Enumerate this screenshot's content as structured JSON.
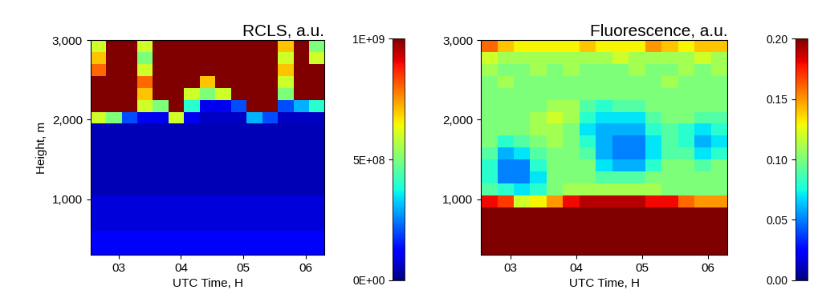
{
  "chart_data": [
    {
      "type": "heatmap",
      "title": "RCLS, a.u.",
      "x_label": "UTC Time, H",
      "y_label": "Height, m",
      "x_edges": [
        2.55,
        2.8,
        3.05,
        3.3,
        3.55,
        3.8,
        4.05,
        4.3,
        4.55,
        4.8,
        5.05,
        5.3,
        5.55,
        5.8,
        6.05,
        6.3
      ],
      "y_edges": [
        300,
        450,
        600,
        750,
        900,
        1050,
        1200,
        1350,
        1500,
        1650,
        1800,
        1950,
        2100,
        2250,
        2400,
        2550,
        2700,
        2850,
        3000
      ],
      "cells": [
        [
          120000000.0,
          120000000.0,
          120000000.0,
          120000000.0,
          120000000.0,
          120000000.0,
          120000000.0,
          120000000.0,
          120000000.0,
          120000000.0,
          120000000.0,
          120000000.0,
          120000000.0,
          120000000.0,
          120000000.0
        ],
        [
          120000000.0,
          120000000.0,
          120000000.0,
          120000000.0,
          120000000.0,
          120000000.0,
          120000000.0,
          120000000.0,
          120000000.0,
          120000000.0,
          120000000.0,
          120000000.0,
          120000000.0,
          120000000.0,
          120000000.0
        ],
        [
          80000000.0,
          80000000.0,
          80000000.0,
          80000000.0,
          80000000.0,
          80000000.0,
          80000000.0,
          80000000.0,
          80000000.0,
          80000000.0,
          80000000.0,
          80000000.0,
          80000000.0,
          80000000.0,
          80000000.0
        ],
        [
          80000000.0,
          80000000.0,
          80000000.0,
          80000000.0,
          80000000.0,
          80000000.0,
          80000000.0,
          80000000.0,
          80000000.0,
          80000000.0,
          80000000.0,
          80000000.0,
          80000000.0,
          80000000.0,
          80000000.0
        ],
        [
          80000000.0,
          80000000.0,
          80000000.0,
          80000000.0,
          80000000.0,
          80000000.0,
          80000000.0,
          80000000.0,
          80000000.0,
          80000000.0,
          80000000.0,
          80000000.0,
          80000000.0,
          80000000.0,
          80000000.0
        ],
        [
          50000000.0,
          50000000.0,
          50000000.0,
          50000000.0,
          50000000.0,
          50000000.0,
          50000000.0,
          50000000.0,
          50000000.0,
          50000000.0,
          50000000.0,
          50000000.0,
          50000000.0,
          50000000.0,
          50000000.0
        ],
        [
          50000000.0,
          50000000.0,
          50000000.0,
          50000000.0,
          50000000.0,
          50000000.0,
          50000000.0,
          50000000.0,
          50000000.0,
          50000000.0,
          50000000.0,
          50000000.0,
          50000000.0,
          50000000.0,
          50000000.0
        ],
        [
          50000000.0,
          50000000.0,
          50000000.0,
          50000000.0,
          50000000.0,
          50000000.0,
          50000000.0,
          50000000.0,
          50000000.0,
          50000000.0,
          50000000.0,
          50000000.0,
          50000000.0,
          50000000.0,
          50000000.0
        ],
        [
          50000000.0,
          50000000.0,
          50000000.0,
          50000000.0,
          50000000.0,
          50000000.0,
          50000000.0,
          50000000.0,
          50000000.0,
          50000000.0,
          50000000.0,
          50000000.0,
          50000000.0,
          50000000.0,
          50000000.0
        ],
        [
          50000000.0,
          50000000.0,
          50000000.0,
          50000000.0,
          50000000.0,
          50000000.0,
          50000000.0,
          50000000.0,
          50000000.0,
          50000000.0,
          50000000.0,
          50000000.0,
          50000000.0,
          50000000.0,
          50000000.0
        ],
        [
          50000000.0,
          50000000.0,
          50000000.0,
          50000000.0,
          50000000.0,
          50000000.0,
          50000000.0,
          50000000.0,
          50000000.0,
          50000000.0,
          50000000.0,
          50000000.0,
          50000000.0,
          50000000.0,
          50000000.0
        ],
        [
          600000000.0,
          500000000.0,
          200000000.0,
          100000000.0,
          100000000.0,
          600000000.0,
          100000000.0,
          60000000.0,
          60000000.0,
          60000000.0,
          300000000.0,
          200000000.0,
          60000000.0,
          60000000.0,
          60000000.0
        ],
        [
          1000000000.0,
          1000000000.0,
          1000000000.0,
          600000000.0,
          500000000.0,
          1000000000.0,
          400000000.0,
          100000000.0,
          100000000.0,
          200000000.0,
          1000000000.0,
          1000000000.0,
          200000000.0,
          300000000.0,
          400000000.0
        ],
        [
          1000000000.0,
          1000000000.0,
          1000000000.0,
          700000000.0,
          1000000000.0,
          1000000000.0,
          600000000.0,
          500000000.0,
          600000000.0,
          1000000000.0,
          1000000000.0,
          1000000000.0,
          500000000.0,
          1000000000.0,
          1000000000.0
        ],
        [
          1000000000.0,
          1000000000.0,
          1000000000.0,
          800000000.0,
          1000000000.0,
          1000000000.0,
          1000000000.0,
          700000000.0,
          1000000000.0,
          1000000000.0,
          1000000000.0,
          1000000000.0,
          600000000.0,
          1000000000.0,
          1000000000.0
        ],
        [
          800000000.0,
          1000000000.0,
          1000000000.0,
          600000000.0,
          1000000000.0,
          1000000000.0,
          1000000000.0,
          1000000000.0,
          1000000000.0,
          1000000000.0,
          1000000000.0,
          1000000000.0,
          700000000.0,
          1000000000.0,
          1000000000.0
        ],
        [
          700000000.0,
          1000000000.0,
          1000000000.0,
          500000000.0,
          1000000000.0,
          1000000000.0,
          1000000000.0,
          1000000000.0,
          1000000000.0,
          1000000000.0,
          1000000000.0,
          1000000000.0,
          600000000.0,
          1000000000.0,
          600000000.0
        ],
        [
          600000000.0,
          1000000000.0,
          1000000000.0,
          600000000.0,
          1000000000.0,
          1000000000.0,
          1000000000.0,
          1000000000.0,
          1000000000.0,
          1000000000.0,
          1000000000.0,
          1000000000.0,
          700000000.0,
          1000000000.0,
          500000000.0
        ]
      ],
      "xlim": [
        2.55,
        6.3
      ],
      "ylim": [
        300,
        3000
      ],
      "xticks": [
        {
          "value": 3,
          "label": "03"
        },
        {
          "value": 4,
          "label": "04"
        },
        {
          "value": 5,
          "label": "05"
        },
        {
          "value": 6,
          "label": "06"
        }
      ],
      "yticks": [
        {
          "value": 1000,
          "label": "1,000"
        },
        {
          "value": 2000,
          "label": "2,000"
        },
        {
          "value": 3000,
          "label": "3,000"
        }
      ],
      "colorbar_range": [
        0,
        1000000000.0
      ],
      "colorbar_ticks": [
        {
          "value": 0,
          "label": "0E+00"
        },
        {
          "value": 500000000.0,
          "label": "5E+08"
        },
        {
          "value": 1000000000.0,
          "label": "1E+09"
        }
      ]
    },
    {
      "type": "heatmap",
      "title": "Fluorescence, a.u.",
      "x_label": "UTC Time, H",
      "x_edges": [
        2.55,
        2.8,
        3.05,
        3.3,
        3.55,
        3.8,
        4.05,
        4.3,
        4.55,
        4.8,
        5.05,
        5.3,
        5.55,
        5.8,
        6.05,
        6.3
      ],
      "y_edges": [
        300,
        450,
        600,
        750,
        900,
        1050,
        1200,
        1350,
        1500,
        1650,
        1800,
        1950,
        2100,
        2250,
        2400,
        2550,
        2700,
        2850,
        3000
      ],
      "cells": [
        [
          0.2,
          0.2,
          0.2,
          0.2,
          0.2,
          0.2,
          0.2,
          0.2,
          0.2,
          0.2,
          0.2,
          0.2,
          0.2,
          0.2,
          0.2
        ],
        [
          0.2,
          0.2,
          0.2,
          0.2,
          0.2,
          0.2,
          0.2,
          0.2,
          0.2,
          0.2,
          0.2,
          0.2,
          0.2,
          0.2,
          0.2
        ],
        [
          0.2,
          0.2,
          0.2,
          0.2,
          0.2,
          0.2,
          0.2,
          0.2,
          0.2,
          0.2,
          0.2,
          0.2,
          0.2,
          0.2,
          0.2
        ],
        [
          0.2,
          0.2,
          0.2,
          0.2,
          0.2,
          0.2,
          0.2,
          0.2,
          0.2,
          0.2,
          0.2,
          0.2,
          0.2,
          0.2,
          0.2
        ],
        [
          0.18,
          0.17,
          0.12,
          0.13,
          0.15,
          0.18,
          0.19,
          0.19,
          0.19,
          0.19,
          0.18,
          0.18,
          0.16,
          0.15,
          0.15
        ],
        [
          0.09,
          0.08,
          0.07,
          0.08,
          0.1,
          0.11,
          0.11,
          0.11,
          0.11,
          0.11,
          0.11,
          0.1,
          0.1,
          0.1,
          0.1
        ],
        [
          0.08,
          0.05,
          0.05,
          0.07,
          0.1,
          0.1,
          0.1,
          0.09,
          0.09,
          0.09,
          0.1,
          0.1,
          0.1,
          0.1,
          0.1
        ],
        [
          0.08,
          0.05,
          0.05,
          0.08,
          0.1,
          0.1,
          0.1,
          0.07,
          0.06,
          0.06,
          0.08,
          0.1,
          0.1,
          0.09,
          0.1
        ],
        [
          0.09,
          0.06,
          0.07,
          0.09,
          0.1,
          0.1,
          0.09,
          0.06,
          0.05,
          0.05,
          0.07,
          0.09,
          0.09,
          0.07,
          0.08
        ],
        [
          0.1,
          0.08,
          0.09,
          0.1,
          0.11,
          0.1,
          0.08,
          0.06,
          0.05,
          0.05,
          0.07,
          0.09,
          0.08,
          0.06,
          0.07
        ],
        [
          0.1,
          0.1,
          0.1,
          0.11,
          0.11,
          0.1,
          0.07,
          0.06,
          0.06,
          0.06,
          0.08,
          0.09,
          0.08,
          0.07,
          0.08
        ],
        [
          0.1,
          0.1,
          0.1,
          0.11,
          0.12,
          0.11,
          0.08,
          0.07,
          0.07,
          0.07,
          0.09,
          0.1,
          0.1,
          0.09,
          0.09
        ],
        [
          0.1,
          0.1,
          0.1,
          0.1,
          0.11,
          0.11,
          0.09,
          0.08,
          0.09,
          0.09,
          0.1,
          0.1,
          0.1,
          0.1,
          0.1
        ],
        [
          0.1,
          0.1,
          0.1,
          0.1,
          0.1,
          0.1,
          0.1,
          0.1,
          0.1,
          0.1,
          0.1,
          0.1,
          0.1,
          0.1,
          0.1
        ],
        [
          0.1,
          0.11,
          0.1,
          0.1,
          0.1,
          0.1,
          0.1,
          0.1,
          0.1,
          0.1,
          0.1,
          0.11,
          0.1,
          0.1,
          0.1
        ],
        [
          0.11,
          0.1,
          0.1,
          0.11,
          0.1,
          0.11,
          0.1,
          0.1,
          0.1,
          0.11,
          0.1,
          0.1,
          0.11,
          0.1,
          0.11
        ],
        [
          0.12,
          0.11,
          0.11,
          0.11,
          0.11,
          0.11,
          0.11,
          0.11,
          0.12,
          0.11,
          0.11,
          0.11,
          0.11,
          0.12,
          0.11
        ],
        [
          0.16,
          0.14,
          0.13,
          0.13,
          0.13,
          0.13,
          0.14,
          0.13,
          0.13,
          0.13,
          0.15,
          0.14,
          0.13,
          0.14,
          0.14
        ]
      ],
      "xlim": [
        2.55,
        6.3
      ],
      "ylim": [
        300,
        3000
      ],
      "xticks": [
        {
          "value": 3,
          "label": "03"
        },
        {
          "value": 4,
          "label": "04"
        },
        {
          "value": 5,
          "label": "05"
        },
        {
          "value": 6,
          "label": "06"
        }
      ],
      "yticks": [
        {
          "value": 1000,
          "label": "1,000"
        },
        {
          "value": 2000,
          "label": "2,000"
        },
        {
          "value": 3000,
          "label": "3,000"
        }
      ],
      "colorbar_range": [
        0,
        0.2
      ],
      "colorbar_ticks": [
        {
          "value": 0,
          "label": "0.00"
        },
        {
          "value": 0.05,
          "label": "0.05"
        },
        {
          "value": 0.1,
          "label": "0.10"
        },
        {
          "value": 0.15,
          "label": "0.15"
        },
        {
          "value": 0.2,
          "label": "0.20"
        }
      ]
    }
  ]
}
